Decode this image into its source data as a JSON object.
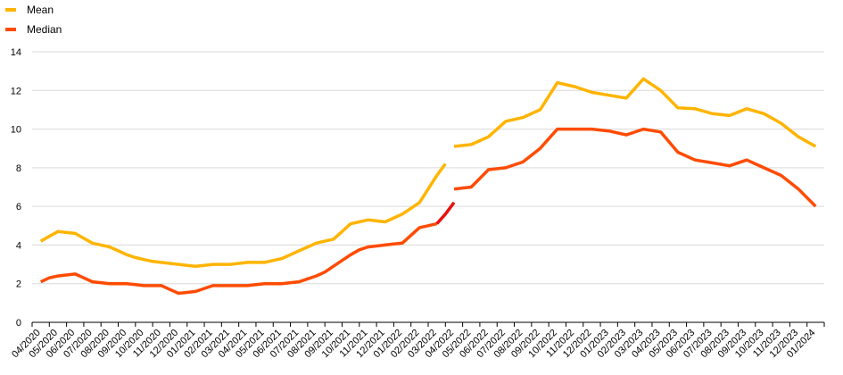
{
  "chart_data": {
    "type": "line",
    "title": "",
    "xlabel": "",
    "ylabel": "",
    "ylim": [
      0,
      14
    ],
    "yticks": [
      0,
      2,
      4,
      6,
      8,
      10,
      12,
      14
    ],
    "grid": "horizontal",
    "legend_position": "top-left",
    "categories": [
      "04/2020",
      "05/2020",
      "06/2020",
      "07/2020",
      "08/2020",
      "09/2020",
      "10/2020",
      "11/2020",
      "12/2020",
      "01/2021",
      "02/2021",
      "03/2021",
      "04/2021",
      "05/2021",
      "06/2021",
      "07/2021",
      "08/2021",
      "09/2021",
      "10/2021",
      "11/2021",
      "12/2021",
      "01/2022",
      "02/2022",
      "03/2022",
      "04/2022",
      "05/2022",
      "06/2022",
      "07/2022",
      "08/2022",
      "09/2022",
      "10/2022",
      "11/2022",
      "12/2022",
      "01/2023",
      "02/2023",
      "03/2023",
      "04/2023",
      "05/2023",
      "06/2023",
      "07/2023",
      "08/2023",
      "09/2023",
      "10/2023",
      "11/2023",
      "12/2023",
      "01/2024"
    ],
    "x": [
      0,
      0.6,
      1.2,
      1.8,
      2.4,
      3.0,
      3.6,
      4.2,
      4.8,
      5.4,
      6.0,
      6.6,
      7.2,
      7.8,
      8.4,
      9.0,
      9.6,
      10.2,
      10.8,
      11.4,
      12.0,
      12.6,
      13.2,
      13.8,
      14.4,
      15.0,
      15.6,
      16.2,
      16.8,
      17.4,
      18.0,
      18.6,
      19.2,
      19.8,
      20.4,
      21.0,
      21.6,
      22.2,
      22.8,
      23.4,
      24.0,
      24.6,
      25.2,
      25.8,
      26.4,
      27.0,
      27.6,
      28.2,
      28.8,
      29.4,
      30.0,
      30.6,
      31.2,
      31.8,
      32.4,
      33.0,
      33.6,
      34.2,
      34.8,
      35.4,
      36.0,
      36.6,
      37.2,
      37.8,
      38.4,
      39.0,
      39.6,
      40.2,
      40.8,
      41.4,
      42.0,
      42.6,
      43.2,
      43.8,
      44.4,
      45.0
    ],
    "series": [
      {
        "name": "Mean",
        "color": "#FFB400",
        "segments": [
          {
            "x": [
              0,
              0.5,
              1,
              1.5,
              2,
              2.5,
              3,
              3.5,
              4,
              4.5,
              5,
              5.5,
              6,
              6.5,
              7,
              7.5,
              8,
              8.5,
              9,
              9.5,
              10,
              10.5,
              11,
              11.5,
              12,
              12.5,
              13,
              13.5,
              14,
              14.5,
              15,
              15.5,
              16,
              16.5,
              17,
              17.5,
              18,
              18.5,
              19,
              19.5,
              20,
              20.5,
              21,
              21.5,
              22,
              22.5,
              23
            ],
            "y": [
              4.2,
              4.45,
              4.7,
              4.65,
              4.6,
              4.35,
              4.1,
              4.0,
              3.9,
              3.7,
              3.5,
              3.35,
              3.25,
              3.15,
              3.1,
              3.05,
              3.0,
              2.95,
              2.9,
              2.95,
              3.0,
              3.0,
              3.0,
              3.05,
              3.1,
              3.1,
              3.1,
              3.2,
              3.3,
              3.5,
              3.7,
              3.9,
              4.1,
              4.2,
              4.3,
              4.7,
              5.1,
              5.2,
              5.3,
              5.25,
              5.2,
              5.4,
              5.6,
              5.9,
              6.2,
              6.9,
              7.6
            ]
          },
          {
            "x": [
              23,
              23.5
            ],
            "y": [
              7.6,
              8.2
            ]
          },
          {
            "x": [
              24,
              25,
              26,
              27,
              28,
              29,
              30,
              31,
              32,
              33,
              34,
              35,
              36,
              37,
              38,
              39,
              40,
              41,
              42,
              43,
              44,
              45
            ],
            "y": [
              9.1,
              9.2,
              9.6,
              10.4,
              10.6,
              11.0,
              12.4,
              12.2,
              11.9,
              11.75,
              11.6,
              12.6,
              12.0,
              11.1,
              11.05,
              10.8,
              10.7,
              11.05,
              10.8,
              10.3,
              9.6,
              9.1
            ]
          }
        ]
      },
      {
        "name": "Median",
        "color": "#FF4B00",
        "highlight_color": "#E8110F",
        "segments": [
          {
            "x": [
              0,
              0.5,
              1,
              1.5,
              2,
              2.5,
              3,
              3.5,
              4,
              4.5,
              5,
              5.5,
              6,
              6.5,
              7,
              7.5,
              8,
              8.5,
              9,
              9.5,
              10,
              10.5,
              11,
              11.5,
              12,
              12.5,
              13,
              13.5,
              14,
              14.5,
              15,
              15.5,
              16,
              16.5,
              17,
              17.5,
              18,
              18.5,
              19,
              19.5,
              20,
              20.5,
              21,
              21.5,
              22,
              22.5,
              23
            ],
            "y": [
              2.1,
              2.3,
              2.4,
              2.45,
              2.5,
              2.3,
              2.1,
              2.05,
              2.0,
              2.0,
              2.0,
              1.95,
              1.9,
              1.9,
              1.9,
              1.7,
              1.5,
              1.55,
              1.6,
              1.75,
              1.9,
              1.9,
              1.9,
              1.9,
              1.9,
              1.95,
              2.0,
              2.0,
              2.0,
              2.05,
              2.1,
              2.25,
              2.4,
              2.6,
              2.9,
              3.2,
              3.5,
              3.75,
              3.9,
              3.95,
              4.0,
              4.05,
              4.1,
              4.5,
              4.9,
              5.0,
              5.1
            ]
          },
          {
            "x": [
              23,
              23.5,
              24
            ],
            "y": [
              5.1,
              5.6,
              6.2
            ],
            "highlight": true
          },
          {
            "x": [
              24,
              25,
              26,
              27,
              28,
              29,
              30,
              31,
              32,
              33,
              34,
              35,
              36,
              37,
              38,
              39,
              40,
              41,
              42,
              43,
              44,
              45
            ],
            "y": [
              6.9,
              7.0,
              7.9,
              8.0,
              8.3,
              9.0,
              10.0,
              10.0,
              10.0,
              9.9,
              9.7,
              10.0,
              9.85,
              8.8,
              8.4,
              8.25,
              8.1,
              8.4,
              8.0,
              7.6,
              6.9,
              6.0
            ]
          }
        ]
      }
    ]
  }
}
